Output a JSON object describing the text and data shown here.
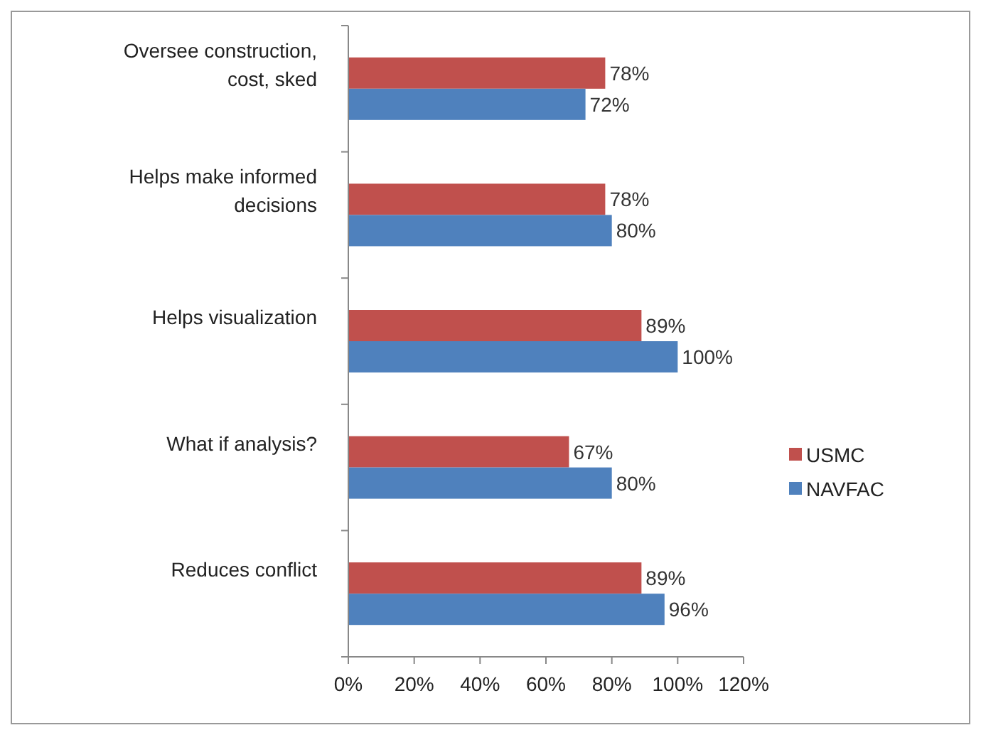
{
  "chart_data": {
    "type": "bar",
    "orientation": "horizontal",
    "categories": [
      "Oversee construction, cost, sked",
      "Helps make informed decisions",
      "Helps visualization",
      "What if analysis?",
      "Reduces conflict"
    ],
    "series": [
      {
        "name": "USMC",
        "color": "#c0504d",
        "values": [
          78,
          78,
          89,
          67,
          89
        ],
        "value_labels": [
          "78%",
          "78%",
          "89%",
          "67%",
          "89%"
        ]
      },
      {
        "name": "NAVFAC",
        "color": "#4f81bd",
        "values": [
          72,
          80,
          100,
          80,
          96
        ],
        "value_labels": [
          "72%",
          "80%",
          "100%",
          "80%",
          "96%"
        ]
      }
    ],
    "xlim": [
      0,
      120
    ],
    "xticks": [
      {
        "value": 0,
        "label": "0%"
      },
      {
        "value": 20,
        "label": "20%"
      },
      {
        "value": 40,
        "label": "40%"
      },
      {
        "value": 60,
        "label": "60%"
      },
      {
        "value": 80,
        "label": "80%"
      },
      {
        "value": 100,
        "label": "100%"
      },
      {
        "value": 120,
        "label": "120%"
      }
    ],
    "grid": false,
    "legend": "right"
  }
}
